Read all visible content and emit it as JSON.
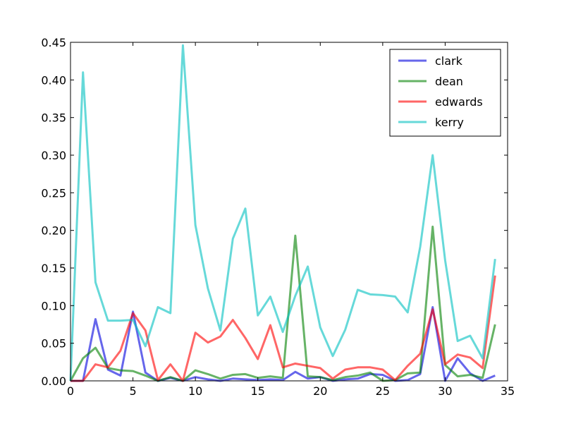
{
  "chart_data": {
    "type": "line",
    "title": "",
    "xlabel": "",
    "ylabel": "",
    "xlim": [
      0,
      35
    ],
    "ylim": [
      0,
      0.45
    ],
    "xticks": [
      0,
      5,
      10,
      15,
      20,
      25,
      30,
      35
    ],
    "xtick_labels": [
      "0",
      "5",
      "10",
      "15",
      "20",
      "25",
      "30",
      "35"
    ],
    "yticks": [
      0.0,
      0.05,
      0.1,
      0.15,
      0.2,
      0.25,
      0.3,
      0.35,
      0.4,
      0.45
    ],
    "ytick_labels": [
      "0.00",
      "0.05",
      "0.10",
      "0.15",
      "0.20",
      "0.25",
      "0.30",
      "0.35",
      "0.40",
      "0.45"
    ],
    "grid": false,
    "legend_position": "top-right",
    "x": [
      0,
      1,
      2,
      3,
      4,
      5,
      6,
      7,
      8,
      9,
      10,
      11,
      12,
      13,
      14,
      15,
      16,
      17,
      18,
      19,
      20,
      21,
      22,
      23,
      24,
      25,
      26,
      27,
      28,
      29,
      30,
      31,
      32,
      33,
      34
    ],
    "series": [
      {
        "name": "clark",
        "color": "#0000dd",
        "values": [
          0.0,
          0.0,
          0.082,
          0.015,
          0.007,
          0.092,
          0.011,
          0.0,
          0.004,
          0.0,
          0.005,
          0.002,
          0.0,
          0.003,
          0.002,
          0.001,
          0.002,
          0.001,
          0.012,
          0.003,
          0.005,
          0.0,
          0.002,
          0.003,
          0.009,
          0.008,
          0.0,
          0.001,
          0.009,
          0.098,
          0.0,
          0.03,
          0.01,
          0.0,
          0.007
        ]
      },
      {
        "name": "dean",
        "color": "#008000",
        "values": [
          0.0,
          0.03,
          0.044,
          0.017,
          0.014,
          0.013,
          0.007,
          0.0,
          0.005,
          0.0,
          0.014,
          0.009,
          0.003,
          0.008,
          0.009,
          0.004,
          0.006,
          0.004,
          0.193,
          0.006,
          0.005,
          0.001,
          0.005,
          0.007,
          0.011,
          0.0,
          0.001,
          0.01,
          0.011,
          0.205,
          0.021,
          0.006,
          0.008,
          0.004,
          0.075
        ]
      },
      {
        "name": "edwards",
        "color": "#ff0000",
        "values": [
          0.0,
          0.0,
          0.022,
          0.018,
          0.04,
          0.09,
          0.067,
          0.001,
          0.022,
          0.0,
          0.064,
          0.051,
          0.059,
          0.081,
          0.057,
          0.029,
          0.074,
          0.018,
          0.023,
          0.02,
          0.017,
          0.003,
          0.015,
          0.018,
          0.018,
          0.015,
          0.001,
          0.02,
          0.036,
          0.095,
          0.022,
          0.035,
          0.031,
          0.017,
          0.14
        ]
      },
      {
        "name": "kerry",
        "color": "#00bfbf",
        "values": [
          0.0,
          0.41,
          0.131,
          0.08,
          0.08,
          0.081,
          0.046,
          0.098,
          0.09,
          0.446,
          0.207,
          0.123,
          0.067,
          0.189,
          0.229,
          0.087,
          0.112,
          0.065,
          0.113,
          0.152,
          0.071,
          0.033,
          0.068,
          0.121,
          0.115,
          0.114,
          0.112,
          0.091,
          0.178,
          0.3,
          0.16,
          0.053,
          0.06,
          0.03,
          0.162
        ]
      }
    ]
  }
}
